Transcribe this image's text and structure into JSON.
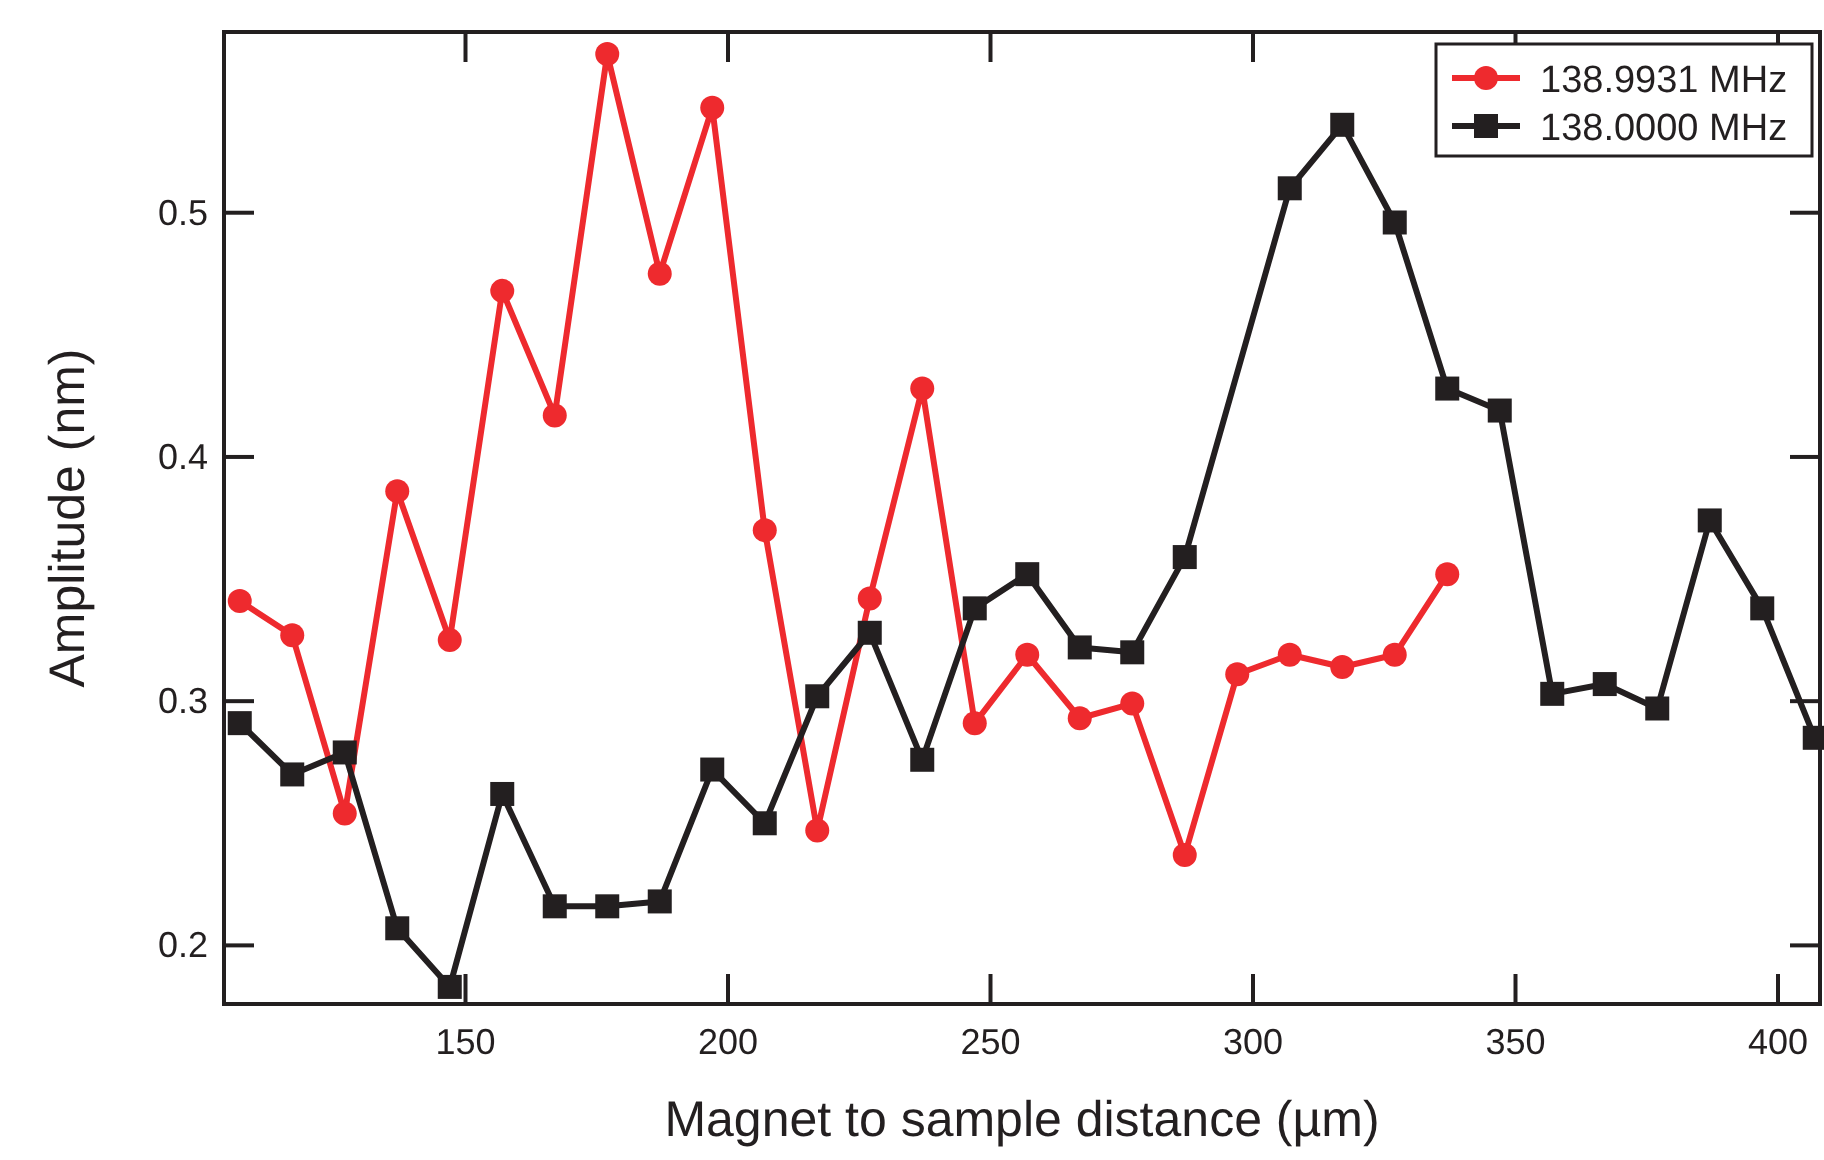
{
  "chart_data": {
    "type": "line",
    "xlabel": "Magnet to sample distance (µm)",
    "ylabel": "Amplitude (nm)",
    "xlim": [
      104,
      408
    ],
    "xticks": [
      150,
      200,
      250,
      300,
      350,
      400
    ],
    "ylim": [
      0.176,
      0.574
    ],
    "yticks": [
      0.2,
      0.3,
      0.4,
      0.5
    ],
    "grid": false,
    "legend": "top right",
    "line_style": "solid",
    "series": [
      {
        "name": "138.9931 MHz",
        "color": "#ee2a2e",
        "marker": "circle",
        "x": [
          107,
          117,
          127,
          137,
          147,
          157,
          167,
          177,
          187,
          197,
          207,
          217,
          227,
          237,
          247,
          257,
          267,
          277,
          287,
          297,
          307,
          317,
          327,
          337
        ],
        "values": [
          0.341,
          0.327,
          0.254,
          0.386,
          0.325,
          0.468,
          0.417,
          0.565,
          0.475,
          0.543,
          0.37,
          0.247,
          0.342,
          0.428,
          0.291,
          0.319,
          0.293,
          0.299,
          0.237,
          0.311,
          0.319,
          0.314,
          0.319,
          0.352
        ]
      },
      {
        "name": "138.0000 MHz",
        "color": "#231f20",
        "marker": "square",
        "x": [
          107,
          117,
          127,
          137,
          147,
          157,
          167,
          177,
          187,
          197,
          207,
          217,
          227,
          237,
          247,
          257,
          267,
          277,
          287,
          307,
          317,
          327,
          337,
          347,
          357,
          367,
          377,
          387,
          397,
          407
        ],
        "values": [
          0.291,
          0.27,
          0.279,
          0.207,
          0.183,
          0.262,
          0.216,
          0.216,
          0.218,
          0.272,
          0.25,
          0.302,
          0.328,
          0.276,
          0.338,
          0.352,
          0.322,
          0.32,
          0.359,
          0.51,
          0.536,
          0.496,
          0.428,
          0.419,
          0.303,
          0.307,
          0.297,
          0.374,
          0.338,
          0.285
        ]
      }
    ]
  }
}
